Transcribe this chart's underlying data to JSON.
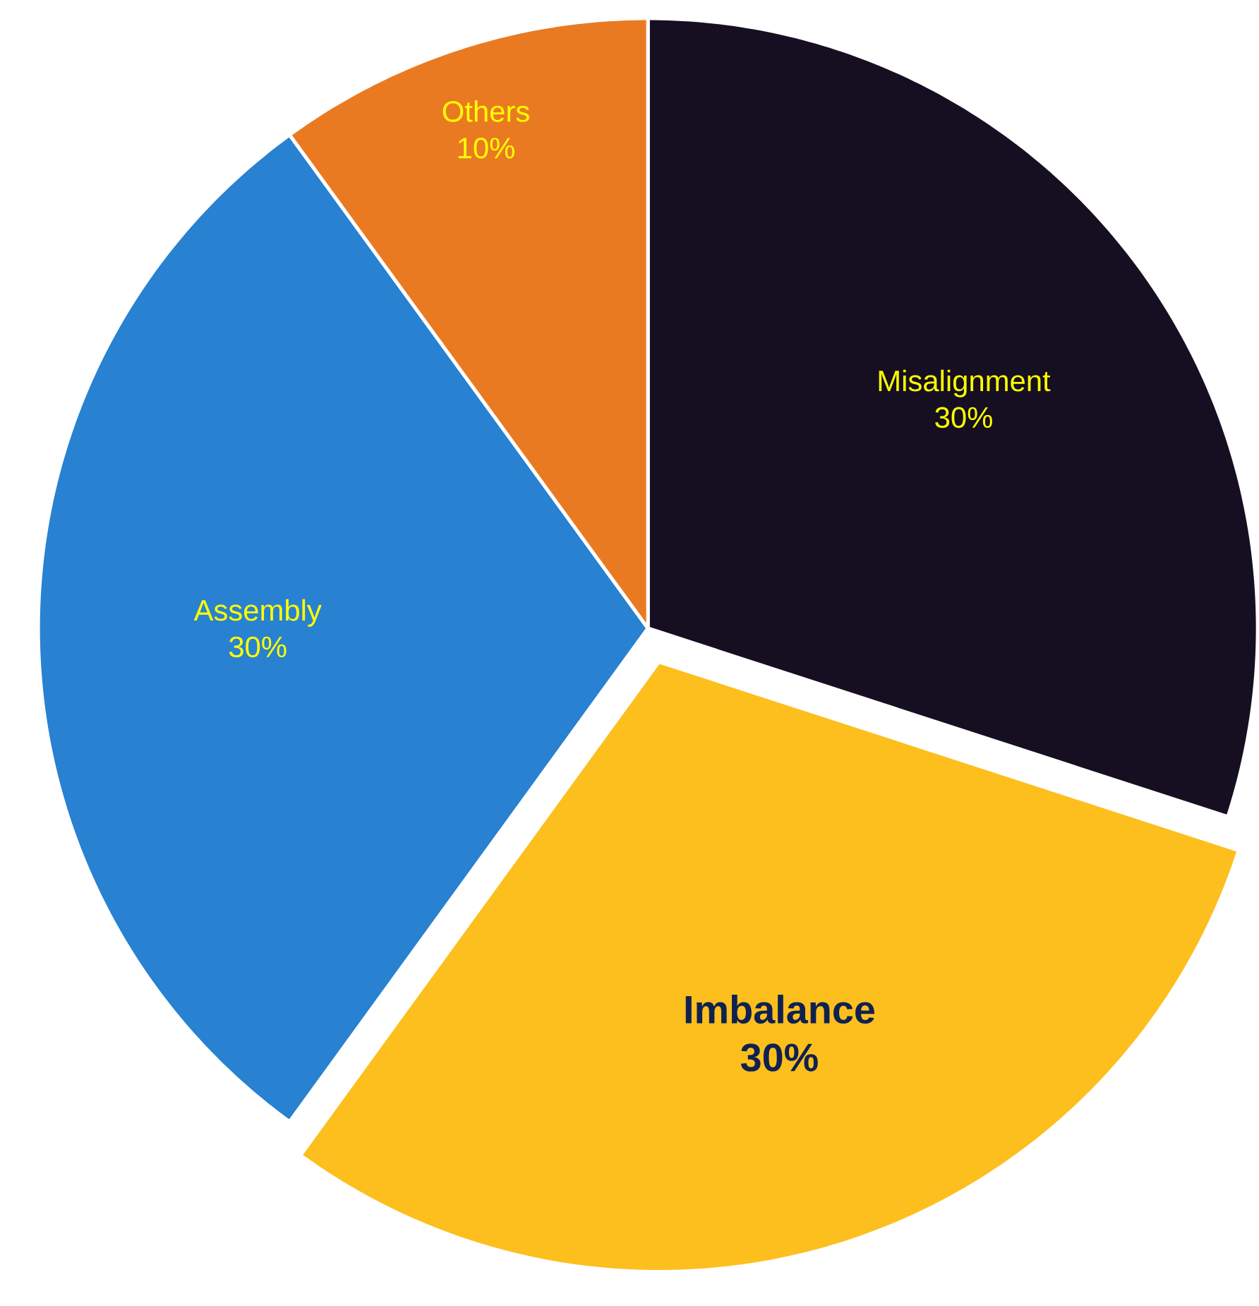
{
  "chart_data": {
    "type": "pie",
    "categories": [
      "Misalignment",
      "Imbalance",
      "Assembly",
      "Others"
    ],
    "values": [
      30,
      30,
      30,
      10
    ],
    "value_labels": [
      "30%",
      "30%",
      "30%",
      "10%"
    ],
    "colors": [
      "#160f21",
      "#fdbf1e",
      "#2881d1",
      "#ea7a22"
    ]
  }
}
